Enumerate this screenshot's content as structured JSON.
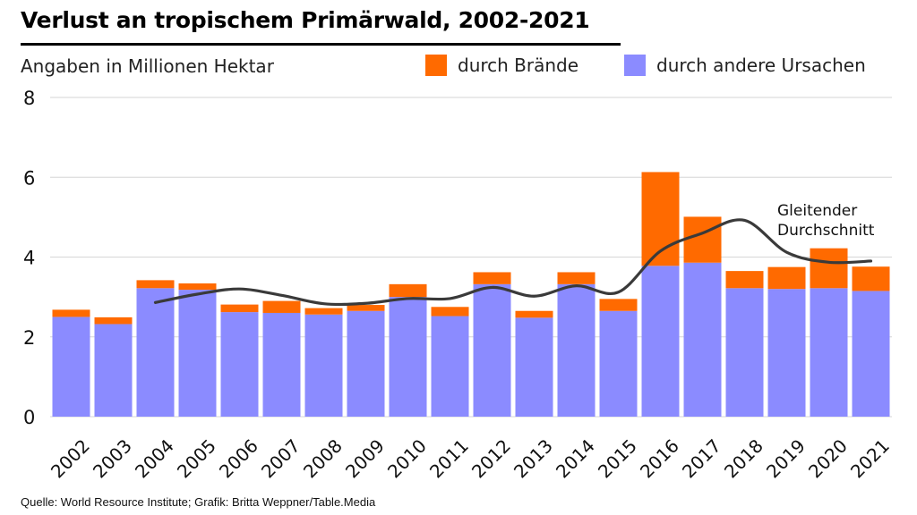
{
  "title": "Verlust an tropischem Primärwald, 2002-2021",
  "subtitle": "Angaben in Millionen Hektar",
  "legend": [
    {
      "label": "durch Brände",
      "color": "#ff6a00"
    },
    {
      "label": "durch andere Ursachen",
      "color": "#8b8bff"
    }
  ],
  "source": "Quelle: World Resource Institute; Grafik: Britta Weppner/Table.Media",
  "chart_data": {
    "type": "bar",
    "stacked": true,
    "categories": [
      "2002",
      "2003",
      "2004",
      "2005",
      "2006",
      "2007",
      "2008",
      "2009",
      "2010",
      "2011",
      "2012",
      "2013",
      "2014",
      "2015",
      "2016",
      "2017",
      "2018",
      "2019",
      "2020",
      "2021"
    ],
    "series": [
      {
        "name": "durch andere Ursachen",
        "color": "#8b8bff",
        "values": [
          2.5,
          2.32,
          3.22,
          3.18,
          2.62,
          2.6,
          2.56,
          2.65,
          3.0,
          2.52,
          3.32,
          2.48,
          3.32,
          2.65,
          3.78,
          3.86,
          3.22,
          3.2,
          3.22,
          3.15
        ]
      },
      {
        "name": "durch Brände",
        "color": "#ff6a00",
        "values": [
          0.18,
          0.17,
          0.2,
          0.16,
          0.19,
          0.3,
          0.16,
          0.15,
          0.32,
          0.23,
          0.3,
          0.17,
          0.3,
          0.3,
          2.35,
          1.15,
          0.43,
          0.55,
          1.0,
          0.61
        ]
      }
    ],
    "moving_average": {
      "label_lines": [
        "Gleitender",
        "Durchschnitt"
      ],
      "x": [
        "2004",
        "2005",
        "2006",
        "2007",
        "2008",
        "2009",
        "2010",
        "2011",
        "2012",
        "2013",
        "2014",
        "2015",
        "2016",
        "2017",
        "2018",
        "2019",
        "2020",
        "2021"
      ],
      "values": [
        2.86,
        3.07,
        3.2,
        3.04,
        2.83,
        2.84,
        2.96,
        2.96,
        3.24,
        3.02,
        3.28,
        3.12,
        4.15,
        4.6,
        4.92,
        4.12,
        3.87,
        3.9
      ],
      "color": "#3a3a3a"
    },
    "title": "Verlust an tropischem Primärwald, 2002-2021",
    "xlabel": "",
    "ylabel": "Angaben in Millionen Hektar",
    "ylim": [
      0,
      8
    ],
    "yticks": [
      0,
      2,
      4,
      6,
      8
    ],
    "grid": true
  }
}
